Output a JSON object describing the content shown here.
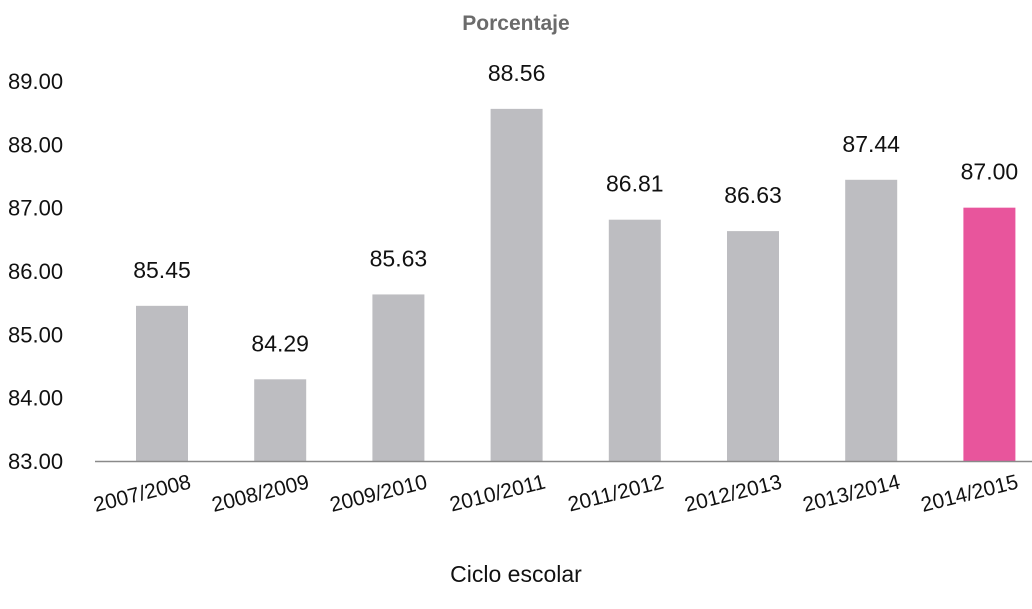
{
  "chart_data": {
    "type": "bar",
    "title": "Porcentaje",
    "xlabel": "Ciclo escolar",
    "ylabel": "",
    "categories": [
      "2007/2008",
      "2008/2009",
      "2009/2010",
      "2010/2011",
      "2011/2012",
      "2012/2013",
      "2013/2014",
      "2014/2015"
    ],
    "values": [
      85.45,
      84.29,
      85.63,
      88.56,
      86.81,
      86.63,
      87.44,
      87.0
    ],
    "data_labels": [
      "85.45",
      "84.29",
      "85.63",
      "88.56",
      "86.81",
      "86.63",
      "87.44",
      "87.00"
    ],
    "ylim": [
      83,
      89
    ],
    "yticks": [
      "83.00",
      "84.00",
      "85.00",
      "86.00",
      "87.00",
      "88.00",
      "89.00"
    ],
    "grid": false,
    "legend": "none",
    "colors": {
      "bar": "#bdbdc1",
      "highlight": "#e8559c",
      "highlight_index": 7,
      "axis": "#8a8a8a",
      "title": "#6b6b6b"
    }
  }
}
